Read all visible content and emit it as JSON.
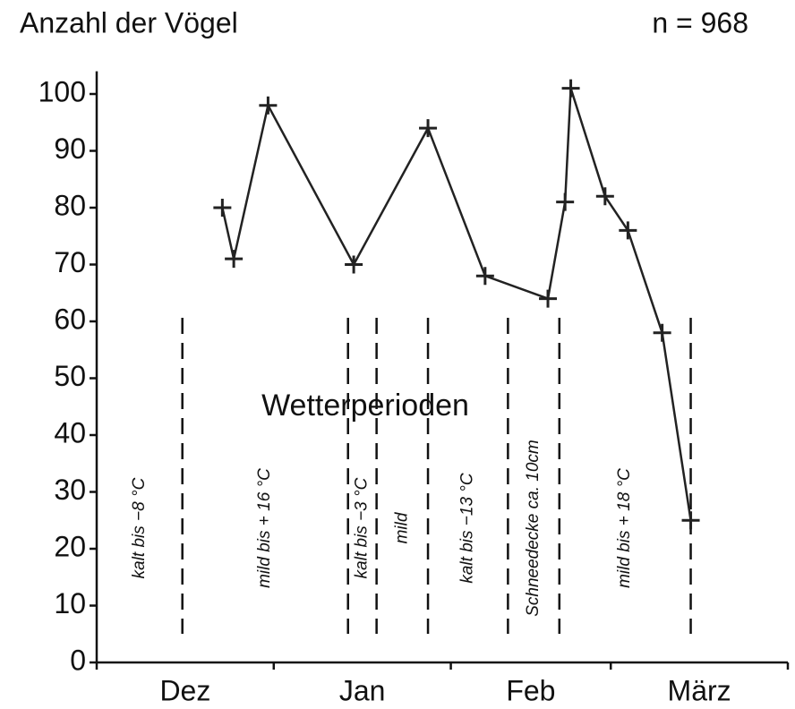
{
  "chart_data": {
    "type": "line",
    "title": "Anzahl der Vögel",
    "subtitle": "n = 968",
    "annotation": "Wetterperioden",
    "categories": [
      "Dez",
      "Jan",
      "Feb",
      "März"
    ],
    "x": [
      22,
      24,
      30,
      45,
      58,
      68,
      79,
      82,
      83,
      89,
      93,
      99,
      104
    ],
    "series": [
      {
        "color": "#222",
        "values": [
          80,
          71,
          98,
          70,
          94,
          68,
          64,
          81,
          101,
          82,
          76,
          58,
          25
        ]
      }
    ],
    "xlim": [
      0,
      121
    ],
    "xticks": [
      0,
      31,
      62,
      90,
      121
    ],
    "ylim": [
      0,
      104
    ],
    "yticks": [
      0,
      10,
      20,
      30,
      40,
      50,
      60,
      70,
      80,
      90,
      100
    ],
    "period_boundaries": [
      15,
      44,
      49,
      58,
      72,
      81,
      104
    ],
    "periods": [
      "kalt bis −8 °C",
      "mild bis + 16 °C",
      "kalt bis −3 °C",
      "mild",
      "kalt bis −13 °C",
      "Schneedecke ca. 10cm",
      "mild bis + 18 °C"
    ]
  }
}
